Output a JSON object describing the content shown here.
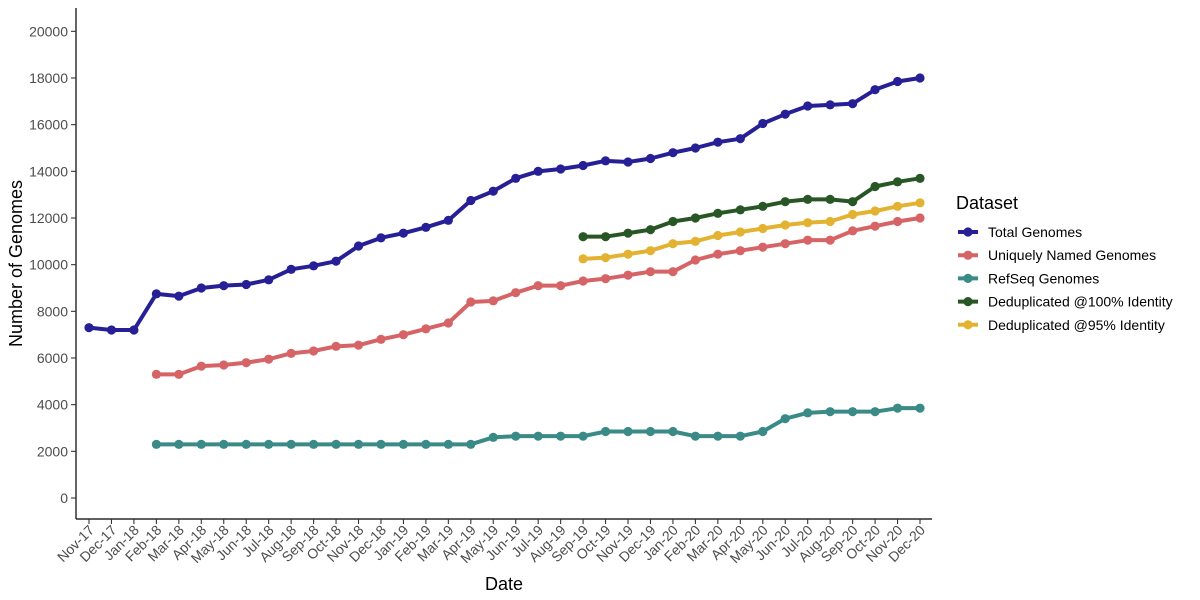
{
  "chart_data": {
    "type": "line",
    "xlabel": "Date",
    "ylabel": "Number of Genomes",
    "ylim": [
      -900,
      21000
    ],
    "yticks": [
      0,
      2000,
      4000,
      6000,
      8000,
      10000,
      12000,
      14000,
      16000,
      18000,
      20000
    ],
    "grid": false,
    "legend": {
      "title": "Dataset",
      "position": "right"
    },
    "categories": [
      "Nov-17",
      "Dec-17",
      "Jan-18",
      "Feb-18",
      "Mar-18",
      "Apr-18",
      "May-18",
      "Jun-18",
      "Jul-18",
      "Aug-18",
      "Sep-18",
      "Oct-18",
      "Nov-18",
      "Dec-18",
      "Jan-19",
      "Feb-19",
      "Mar-19",
      "Apr-19",
      "May-19",
      "Jun-19",
      "Jul-19",
      "Aug-19",
      "Sep-19",
      "Oct-19",
      "Nov-19",
      "Dec-19",
      "Jan-20",
      "Feb-20",
      "Mar-20",
      "Apr-20",
      "May-20",
      "Jun-20",
      "Jul-20",
      "Aug-20",
      "Sep-20",
      "Oct-20",
      "Nov-20",
      "Dec-20"
    ],
    "series": [
      {
        "name": "Total Genomes",
        "color": "#271f96",
        "values": [
          7300,
          7200,
          7200,
          8750,
          8650,
          9000,
          9100,
          9150,
          9350,
          9800,
          9950,
          10150,
          10800,
          11150,
          11350,
          11600,
          11900,
          12750,
          13150,
          13700,
          14000,
          14100,
          14250,
          14450,
          14400,
          14550,
          14800,
          15000,
          15250,
          15400,
          16050,
          16450,
          16800,
          16850,
          16900,
          17500,
          17850,
          18000
        ]
      },
      {
        "name": "Uniquely Named Genomes",
        "color": "#d66466",
        "values": [
          null,
          null,
          null,
          5300,
          5300,
          5650,
          5700,
          5800,
          5950,
          6200,
          6300,
          6500,
          6550,
          6800,
          7000,
          7250,
          7500,
          8400,
          8450,
          8800,
          9100,
          9100,
          9300,
          9400,
          9550,
          9700,
          9700,
          10200,
          10450,
          10600,
          10750,
          10900,
          11050,
          11050,
          11450,
          11650,
          11850,
          12000
        ]
      },
      {
        "name": "RefSeq Genomes",
        "color": "#3a8a87",
        "values": [
          null,
          null,
          null,
          2300,
          2300,
          2300,
          2300,
          2300,
          2300,
          2300,
          2300,
          2300,
          2300,
          2300,
          2300,
          2300,
          2300,
          2300,
          2600,
          2650,
          2650,
          2650,
          2650,
          2850,
          2850,
          2850,
          2850,
          2650,
          2650,
          2650,
          2850,
          3400,
          3650,
          3700,
          3700,
          3700,
          3850,
          3850
        ]
      },
      {
        "name": "Deduplicated @100% Identity",
        "color": "#285624",
        "values": [
          null,
          null,
          null,
          null,
          null,
          null,
          null,
          null,
          null,
          null,
          null,
          null,
          null,
          null,
          null,
          null,
          null,
          null,
          null,
          null,
          null,
          null,
          11200,
          11200,
          11350,
          11500,
          11850,
          12000,
          12200,
          12350,
          12500,
          12700,
          12800,
          12800,
          12700,
          13350,
          13550,
          13700
        ]
      },
      {
        "name": "Deduplicated @95% Identity",
        "color": "#e3b230",
        "values": [
          null,
          null,
          null,
          null,
          null,
          null,
          null,
          null,
          null,
          null,
          null,
          null,
          null,
          null,
          null,
          null,
          null,
          null,
          null,
          null,
          null,
          null,
          10250,
          10300,
          10450,
          10600,
          10900,
          11000,
          11250,
          11400,
          11550,
          11700,
          11800,
          11850,
          12150,
          12300,
          12500,
          12650
        ]
      }
    ]
  }
}
